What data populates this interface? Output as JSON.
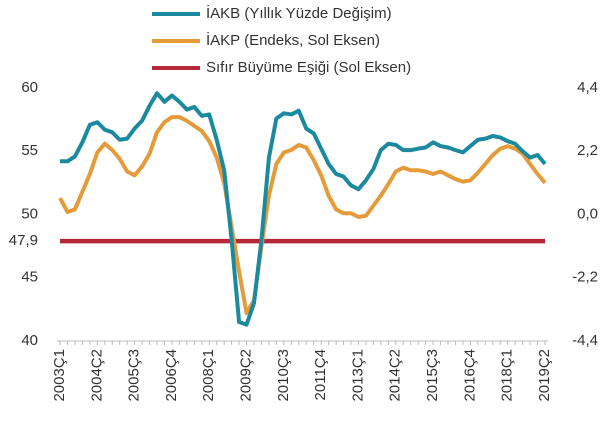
{
  "chart_data": {
    "type": "line",
    "categories": [
      "2003Ç1",
      null,
      null,
      null,
      null,
      "2004Ç2",
      null,
      null,
      null,
      null,
      "2005Ç3",
      null,
      null,
      null,
      null,
      "2006Ç4",
      null,
      null,
      null,
      null,
      "2008Ç1",
      null,
      null,
      null,
      null,
      "2009Ç2",
      null,
      null,
      null,
      null,
      "2010Ç3",
      null,
      null,
      null,
      null,
      "2011Ç4",
      null,
      null,
      null,
      null,
      "2013Ç1",
      null,
      null,
      null,
      null,
      "2014Ç2",
      null,
      null,
      null,
      null,
      "2015Ç3",
      null,
      null,
      null,
      null,
      "2016Ç4",
      null,
      null,
      null,
      null,
      "2018Ç1",
      null,
      null,
      null,
      null,
      "2019Ç2"
    ],
    "series": [
      {
        "name": "İAKB (Yıllık Yüzde Değişim)",
        "color": "#1b8a9e",
        "axis": "y2",
        "values": [
          1.85,
          1.85,
          2.02,
          2.51,
          3.12,
          3.21,
          2.95,
          2.86,
          2.6,
          2.64,
          2.99,
          3.26,
          3.78,
          4.22,
          3.92,
          4.14,
          3.92,
          3.65,
          3.74,
          3.43,
          3.48,
          2.6,
          1.54,
          -0.88,
          -3.74,
          -3.83,
          -3.08,
          -0.88,
          1.98,
          3.34,
          3.52,
          3.48,
          3.61,
          2.99,
          2.82,
          2.29,
          1.76,
          1.41,
          1.32,
          1.01,
          0.88,
          1.19,
          1.58,
          2.24,
          2.46,
          2.42,
          2.24,
          2.24,
          2.29,
          2.33,
          2.51,
          2.38,
          2.33,
          2.24,
          2.16,
          2.38,
          2.6,
          2.64,
          2.73,
          2.68,
          2.55,
          2.46,
          2.2,
          1.98,
          2.07,
          1.76
        ]
      },
      {
        "name": "İAKP (Endeks, Sol Eksen)",
        "color": "#e59b3a",
        "axis": "y",
        "values": [
          51.3,
          50.2,
          50.4,
          51.8,
          53.2,
          54.9,
          55.6,
          55.1,
          54.4,
          53.4,
          53.1,
          53.8,
          54.8,
          56.5,
          57.3,
          57.7,
          57.7,
          57.4,
          57.0,
          56.6,
          55.8,
          54.5,
          52.5,
          49.0,
          45.5,
          42.2,
          43.2,
          47.5,
          51.5,
          54.0,
          54.9,
          55.1,
          55.5,
          55.3,
          54.3,
          53.1,
          51.5,
          50.4,
          50.1,
          50.1,
          49.8,
          49.9,
          50.7,
          51.5,
          52.4,
          53.4,
          53.7,
          53.5,
          53.5,
          53.4,
          53.2,
          53.4,
          53.1,
          52.8,
          52.6,
          52.7,
          53.3,
          54.0,
          54.7,
          55.2,
          55.4,
          55.2,
          54.8,
          54.0,
          53.2,
          52.5
        ]
      },
      {
        "name": "Sıfır Büyüme Eşiği (Sol Eksen)",
        "color": "#b5283a",
        "axis": "y",
        "values": [
          47.9,
          47.9,
          47.9,
          47.9,
          47.9,
          47.9,
          47.9,
          47.9,
          47.9,
          47.9,
          47.9,
          47.9,
          47.9,
          47.9,
          47.9,
          47.9,
          47.9,
          47.9,
          47.9,
          47.9,
          47.9,
          47.9,
          47.9,
          47.9,
          47.9,
          47.9,
          47.9,
          47.9,
          47.9,
          47.9,
          47.9,
          47.9,
          47.9,
          47.9,
          47.9,
          47.9,
          47.9,
          47.9,
          47.9,
          47.9,
          47.9,
          47.9,
          47.9,
          47.9,
          47.9,
          47.9,
          47.9,
          47.9,
          47.9,
          47.9,
          47.9,
          47.9,
          47.9,
          47.9,
          47.9,
          47.9,
          47.9,
          47.9,
          47.9,
          47.9,
          47.9,
          47.9,
          47.9,
          47.9,
          47.9,
          47.9
        ]
      }
    ],
    "ylim": [
      40,
      60
    ],
    "yticks": [
      40,
      45,
      {
        "value": 47.9,
        "label": "47,9"
      },
      50,
      55,
      60
    ],
    "y2lim": [
      -4.4,
      4.4
    ],
    "y2ticks": [
      {
        "value": -4.4,
        "label": "-4,4"
      },
      {
        "value": -2.2,
        "label": "-2,2"
      },
      {
        "value": 0,
        "label": "0,0"
      },
      {
        "value": 2.2,
        "label": "2,2"
      },
      {
        "value": 4.4,
        "label": "4,4"
      }
    ],
    "legend": "top"
  }
}
